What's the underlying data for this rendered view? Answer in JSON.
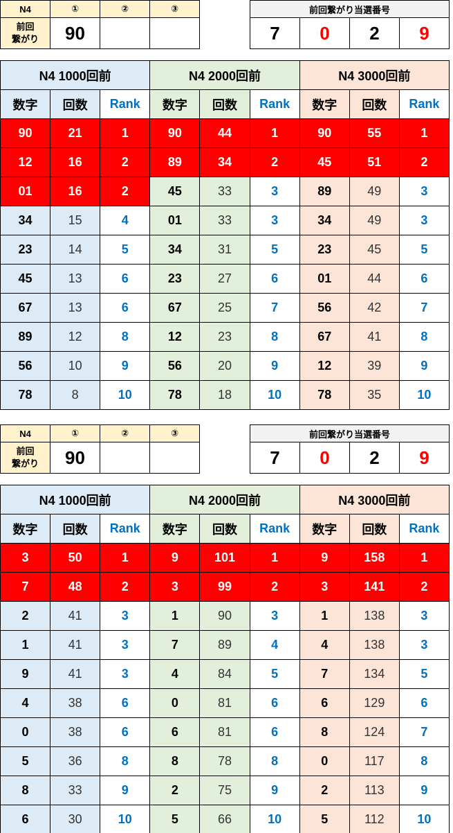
{
  "colors": {
    "highlight": "#FF0000",
    "rank_text": "#0070C0",
    "group_1000": "#DDEBF7",
    "group_2000": "#E2EFDA",
    "group_3000": "#FCE4D6",
    "header_cream": "#FFF2CC"
  },
  "sections": [
    {
      "info": {
        "label": "N4",
        "cols": [
          "①",
          "②",
          "③"
        ],
        "row_label_1": "前回",
        "row_label_2": "繋がり",
        "values": [
          "90",
          "",
          ""
        ]
      },
      "winning": {
        "title": "前回繋がり当選番号",
        "digits": [
          {
            "v": "7",
            "red": false
          },
          {
            "v": "0",
            "red": true
          },
          {
            "v": "2",
            "red": false
          },
          {
            "v": "9",
            "red": true
          }
        ]
      },
      "groups": [
        {
          "title": "N4 1000回前",
          "headers": [
            "数字",
            "回数",
            "Rank"
          ],
          "rows": [
            [
              "90",
              "21",
              "1",
              1
            ],
            [
              "12",
              "16",
              "2",
              1
            ],
            [
              "01",
              "16",
              "2",
              1
            ],
            [
              "34",
              "15",
              "4",
              0
            ],
            [
              "23",
              "14",
              "5",
              0
            ],
            [
              "45",
              "13",
              "6",
              0
            ],
            [
              "67",
              "13",
              "6",
              0
            ],
            [
              "89",
              "12",
              "8",
              0
            ],
            [
              "56",
              "10",
              "9",
              0
            ],
            [
              "78",
              "8",
              "10",
              0
            ]
          ]
        },
        {
          "title": "N4 2000回前",
          "headers": [
            "数字",
            "回数",
            "Rank"
          ],
          "rows": [
            [
              "90",
              "44",
              "1",
              1
            ],
            [
              "89",
              "34",
              "2",
              1
            ],
            [
              "45",
              "33",
              "3",
              0
            ],
            [
              "01",
              "33",
              "3",
              0
            ],
            [
              "34",
              "31",
              "5",
              0
            ],
            [
              "23",
              "27",
              "6",
              0
            ],
            [
              "67",
              "25",
              "7",
              0
            ],
            [
              "12",
              "23",
              "8",
              0
            ],
            [
              "56",
              "20",
              "9",
              0
            ],
            [
              "78",
              "18",
              "10",
              0
            ]
          ]
        },
        {
          "title": "N4 3000回前",
          "headers": [
            "数字",
            "回数",
            "Rank"
          ],
          "rows": [
            [
              "90",
              "55",
              "1",
              1
            ],
            [
              "45",
              "51",
              "2",
              1
            ],
            [
              "89",
              "49",
              "3",
              0
            ],
            [
              "34",
              "49",
              "3",
              0
            ],
            [
              "23",
              "45",
              "5",
              0
            ],
            [
              "01",
              "44",
              "6",
              0
            ],
            [
              "56",
              "42",
              "7",
              0
            ],
            [
              "67",
              "41",
              "8",
              0
            ],
            [
              "12",
              "39",
              "9",
              0
            ],
            [
              "78",
              "35",
              "10",
              0
            ]
          ]
        }
      ]
    },
    {
      "info": {
        "label": "N4",
        "cols": [
          "①",
          "②",
          "③"
        ],
        "row_label_1": "前回",
        "row_label_2": "繋がり",
        "values": [
          "90",
          "",
          ""
        ]
      },
      "winning": {
        "title": "前回繋がり当選番号",
        "digits": [
          {
            "v": "7",
            "red": false
          },
          {
            "v": "0",
            "red": true
          },
          {
            "v": "2",
            "red": false
          },
          {
            "v": "9",
            "red": true
          }
        ]
      },
      "groups": [
        {
          "title": "N4 1000回前",
          "headers": [
            "数字",
            "回数",
            "Rank"
          ],
          "rows": [
            [
              "3",
              "50",
              "1",
              1
            ],
            [
              "7",
              "48",
              "2",
              1
            ],
            [
              "2",
              "41",
              "3",
              0
            ],
            [
              "1",
              "41",
              "3",
              0
            ],
            [
              "9",
              "41",
              "3",
              0
            ],
            [
              "4",
              "38",
              "6",
              0
            ],
            [
              "0",
              "38",
              "6",
              0
            ],
            [
              "5",
              "36",
              "8",
              0
            ],
            [
              "8",
              "33",
              "9",
              0
            ],
            [
              "6",
              "30",
              "10",
              0
            ]
          ]
        },
        {
          "title": "N4 2000回前",
          "headers": [
            "数字",
            "回数",
            "Rank"
          ],
          "rows": [
            [
              "9",
              "101",
              "1",
              1
            ],
            [
              "3",
              "99",
              "2",
              1
            ],
            [
              "1",
              "90",
              "3",
              0
            ],
            [
              "7",
              "89",
              "4",
              0
            ],
            [
              "4",
              "84",
              "5",
              0
            ],
            [
              "0",
              "81",
              "6",
              0
            ],
            [
              "6",
              "81",
              "6",
              0
            ],
            [
              "8",
              "78",
              "8",
              0
            ],
            [
              "2",
              "75",
              "9",
              0
            ],
            [
              "5",
              "66",
              "10",
              0
            ]
          ]
        },
        {
          "title": "N4 3000回前",
          "headers": [
            "数字",
            "回数",
            "Rank"
          ],
          "rows": [
            [
              "9",
              "158",
              "1",
              1
            ],
            [
              "3",
              "141",
              "2",
              1
            ],
            [
              "1",
              "138",
              "3",
              0
            ],
            [
              "4",
              "138",
              "3",
              0
            ],
            [
              "7",
              "134",
              "5",
              0
            ],
            [
              "6",
              "129",
              "6",
              0
            ],
            [
              "8",
              "124",
              "7",
              0
            ],
            [
              "0",
              "117",
              "8",
              0
            ],
            [
              "2",
              "113",
              "9",
              0
            ],
            [
              "5",
              "112",
              "10",
              0
            ]
          ]
        }
      ]
    }
  ]
}
